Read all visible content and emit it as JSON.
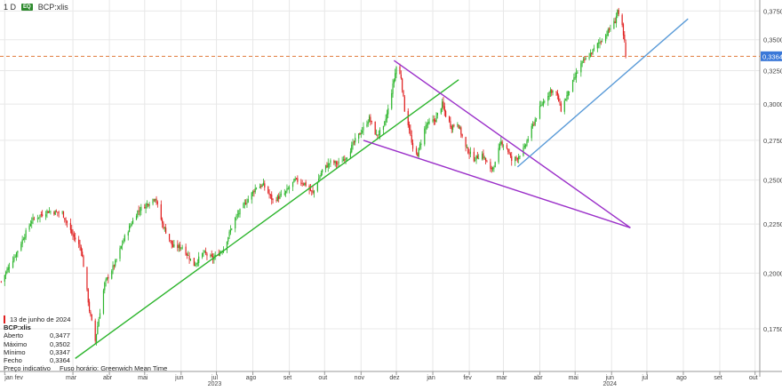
{
  "header": {
    "interval": "1 D",
    "badge": "EQ",
    "symbol": "BCP:xlis"
  },
  "panel": {
    "date": "13 de junho de 2024",
    "symbol": "BCP:xlis",
    "rows": [
      {
        "label": "Aberto",
        "value": "0,3477"
      },
      {
        "label": "Máximo",
        "value": "0,3502"
      },
      {
        "label": "Mínimo",
        "value": "0,3347"
      },
      {
        "label": "Fecho",
        "value": "0,3364"
      }
    ],
    "footer_left": "Preço indicativo",
    "footer_right": "Fuso horário: Greenwich Mean Time"
  },
  "colors": {
    "up": "#2db52d",
    "down": "#e02020",
    "trend_green": "#2db52d",
    "trend_purple": "#9b30c9",
    "trend_blue": "#5a9bd8",
    "last_price_line": "#e07a3a",
    "last_price_badge": "#3a78d8",
    "grid": "#e8e8e8"
  },
  "chart_data": {
    "type": "candlestick",
    "y_scale": "log",
    "ylim": [
      0.158,
      0.385
    ],
    "yticks": [
      "0,3750",
      "0,3500",
      "0,3250",
      "0,3000",
      "0,2750",
      "0,2500",
      "0,2250",
      "0,2000",
      "0,1750"
    ],
    "ytick_values": [
      0.375,
      0.35,
      0.325,
      0.3,
      0.275,
      0.25,
      0.225,
      0.2,
      0.175
    ],
    "last_price": 0.3364,
    "last_price_label": "0,3364",
    "xlim": [
      "2022-12-29",
      "2024-10-05"
    ],
    "x_ticks": [
      {
        "date": "2023-01-02",
        "label": "jan fev",
        "year": ""
      },
      {
        "date": "2023-03-01",
        "label": "mar",
        "year": ""
      },
      {
        "date": "2023-04-01",
        "label": "abr",
        "year": ""
      },
      {
        "date": "2023-05-01",
        "label": "mai",
        "year": ""
      },
      {
        "date": "2023-06-01",
        "label": "jun",
        "year": ""
      },
      {
        "date": "2023-07-01",
        "label": "jul",
        "year": "2023"
      },
      {
        "date": "2023-08-01",
        "label": "ago",
        "year": ""
      },
      {
        "date": "2023-09-01",
        "label": "set",
        "year": ""
      },
      {
        "date": "2023-10-01",
        "label": "out",
        "year": ""
      },
      {
        "date": "2023-11-01",
        "label": "nov",
        "year": ""
      },
      {
        "date": "2023-12-01",
        "label": "dez",
        "year": ""
      },
      {
        "date": "2024-01-01",
        "label": "jan",
        "year": ""
      },
      {
        "date": "2024-02-01",
        "label": "fev",
        "year": ""
      },
      {
        "date": "2024-03-01",
        "label": "mar",
        "year": ""
      },
      {
        "date": "2024-04-01",
        "label": "abr",
        "year": ""
      },
      {
        "date": "2024-05-01",
        "label": "mai",
        "year": ""
      },
      {
        "date": "2024-06-01",
        "label": "jun",
        "year": "2024"
      },
      {
        "date": "2024-07-01",
        "label": "jul",
        "year": ""
      },
      {
        "date": "2024-08-01",
        "label": "ago",
        "year": ""
      },
      {
        "date": "2024-09-01",
        "label": "set",
        "year": ""
      },
      {
        "date": "2024-10-01",
        "label": "out",
        "year": ""
      }
    ],
    "close_anchors": [
      [
        "2022-12-30",
        0.196
      ],
      [
        "2023-01-12",
        0.21
      ],
      [
        "2023-01-25",
        0.227
      ],
      [
        "2023-02-07",
        0.232
      ],
      [
        "2023-02-20",
        0.231
      ],
      [
        "2023-02-28",
        0.22
      ],
      [
        "2023-03-08",
        0.212
      ],
      [
        "2023-03-15",
        0.183
      ],
      [
        "2023-03-20",
        0.17
      ],
      [
        "2023-03-28",
        0.195
      ],
      [
        "2023-04-06",
        0.205
      ],
      [
        "2023-04-14",
        0.218
      ],
      [
        "2023-04-25",
        0.232
      ],
      [
        "2023-05-03",
        0.236
      ],
      [
        "2023-05-10",
        0.24
      ],
      [
        "2023-05-16",
        0.225
      ],
      [
        "2023-05-25",
        0.213
      ],
      [
        "2023-06-02",
        0.213
      ],
      [
        "2023-06-12",
        0.204
      ],
      [
        "2023-06-20",
        0.21
      ],
      [
        "2023-06-28",
        0.207
      ],
      [
        "2023-07-07",
        0.212
      ],
      [
        "2023-07-17",
        0.228
      ],
      [
        "2023-07-27",
        0.238
      ],
      [
        "2023-08-04",
        0.246
      ],
      [
        "2023-08-10",
        0.247
      ],
      [
        "2023-08-18",
        0.238
      ],
      [
        "2023-08-28",
        0.242
      ],
      [
        "2023-09-06",
        0.25
      ],
      [
        "2023-09-14",
        0.248
      ],
      [
        "2023-09-21",
        0.242
      ],
      [
        "2023-09-29",
        0.256
      ],
      [
        "2023-10-06",
        0.261
      ],
      [
        "2023-10-13",
        0.26
      ],
      [
        "2023-10-20",
        0.265
      ],
      [
        "2023-10-27",
        0.275
      ],
      [
        "2023-11-03",
        0.283
      ],
      [
        "2023-11-08",
        0.29
      ],
      [
        "2023-11-14",
        0.278
      ],
      [
        "2023-11-20",
        0.283
      ],
      [
        "2023-11-24",
        0.296
      ],
      [
        "2023-11-29",
        0.318
      ],
      [
        "2023-12-01",
        0.328
      ],
      [
        "2023-12-05",
        0.32
      ],
      [
        "2023-12-08",
        0.296
      ],
      [
        "2023-12-12",
        0.283
      ],
      [
        "2023-12-15",
        0.268
      ],
      [
        "2023-12-19",
        0.266
      ],
      [
        "2023-12-26",
        0.285
      ],
      [
        "2024-01-03",
        0.289
      ],
      [
        "2024-01-09",
        0.3
      ],
      [
        "2024-01-12",
        0.292
      ],
      [
        "2024-01-17",
        0.284
      ],
      [
        "2024-01-22",
        0.287
      ],
      [
        "2024-01-29",
        0.27
      ],
      [
        "2024-02-05",
        0.263
      ],
      [
        "2024-02-12",
        0.266
      ],
      [
        "2024-02-19",
        0.256
      ],
      [
        "2024-02-23",
        0.26
      ],
      [
        "2024-02-28",
        0.274
      ],
      [
        "2024-03-04",
        0.27
      ],
      [
        "2024-03-08",
        0.262
      ],
      [
        "2024-03-13",
        0.264
      ],
      [
        "2024-03-19",
        0.27
      ],
      [
        "2024-03-25",
        0.283
      ],
      [
        "2024-04-01",
        0.297
      ],
      [
        "2024-04-05",
        0.303
      ],
      [
        "2024-04-10",
        0.31
      ],
      [
        "2024-04-15",
        0.308
      ],
      [
        "2024-04-19",
        0.296
      ],
      [
        "2024-04-24",
        0.306
      ],
      [
        "2024-04-30",
        0.318
      ],
      [
        "2024-05-06",
        0.33
      ],
      [
        "2024-05-13",
        0.337
      ],
      [
        "2024-05-20",
        0.346
      ],
      [
        "2024-05-27",
        0.354
      ],
      [
        "2024-05-31",
        0.36
      ],
      [
        "2024-06-04",
        0.366
      ],
      [
        "2024-06-06",
        0.376
      ],
      [
        "2024-06-07",
        0.37
      ],
      [
        "2024-06-10",
        0.361
      ],
      [
        "2024-06-11",
        0.353
      ],
      [
        "2024-06-12",
        0.348
      ],
      [
        "2024-06-13",
        0.3364
      ]
    ],
    "trendlines": [
      {
        "color": "trend_green",
        "points": [
          [
            "2023-03-03",
            0.163
          ],
          [
            "2024-01-23",
            0.318
          ]
        ]
      },
      {
        "color": "trend_purple",
        "points": [
          [
            "2023-11-29",
            0.333
          ],
          [
            "2024-06-17",
            0.223
          ]
        ]
      },
      {
        "color": "trend_purple",
        "points": [
          [
            "2023-11-03",
            0.275
          ],
          [
            "2024-06-17",
            0.223
          ]
        ]
      },
      {
        "color": "trend_blue",
        "points": [
          [
            "2024-03-13",
            0.258
          ],
          [
            "2024-08-05",
            0.368
          ]
        ]
      }
    ]
  }
}
